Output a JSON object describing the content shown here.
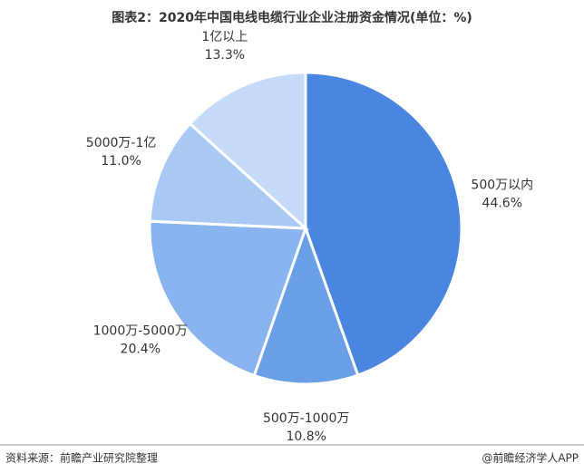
{
  "chart_data": {
    "type": "pie",
    "title": "图表2：2020年中国电线电缆行业企业注册资金情况(单位：%)",
    "categories": [
      "500万以内",
      "500万-1000万",
      "1000万-5000万",
      "5000万-1亿",
      "1亿以上"
    ],
    "values": [
      44.6,
      10.8,
      20.4,
      11.0,
      13.3
    ],
    "value_labels": [
      "44.6%",
      "10.8%",
      "20.4%",
      "11.0%",
      "13.3%"
    ],
    "colors": [
      "#4a86e0",
      "#6a9fe8",
      "#8ab4ef",
      "#a9c9f5",
      "#c5dbf9"
    ],
    "source": "资料来源：前瞻产业研究院整理",
    "credit": "@前瞻经济学人APP"
  }
}
